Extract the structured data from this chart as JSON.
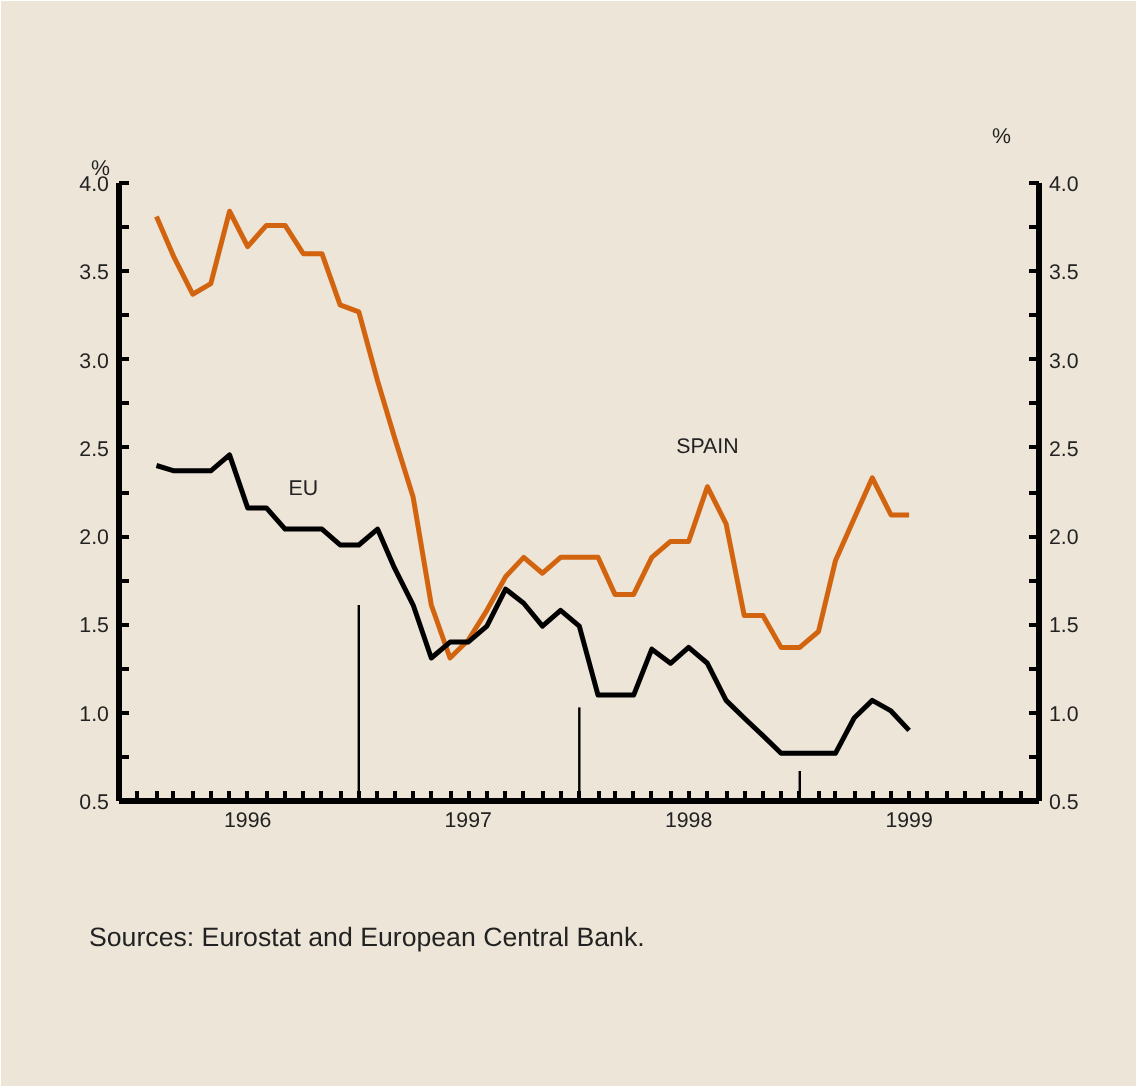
{
  "chart_data": {
    "type": "line",
    "ylabel": "%",
    "y2label": "%",
    "x": [
      "1996-02",
      "1996-03",
      "1996-04",
      "1996-05",
      "1996-06",
      "1996-07",
      "1996-08",
      "1996-09",
      "1996-10",
      "1996-11",
      "1996-12",
      "1997-01",
      "1997-02",
      "1997-03",
      "1997-04",
      "1997-05",
      "1997-06",
      "1997-07",
      "1997-08",
      "1997-09",
      "1997-10",
      "1997-11",
      "1997-12",
      "1998-01",
      "1998-02",
      "1998-03",
      "1998-04",
      "1998-05",
      "1998-06",
      "1998-07",
      "1998-08",
      "1998-09",
      "1998-10",
      "1998-11",
      "1998-12",
      "1999-01",
      "1999-02",
      "1999-03",
      "1999-04",
      "1999-05",
      "1999-06",
      "1999-07"
    ],
    "series": [
      {
        "name": "SPAIN",
        "color": "#d2640f",
        "values": [
          3.81,
          3.58,
          3.37,
          3.43,
          3.84,
          3.64,
          3.76,
          3.76,
          3.6,
          3.6,
          3.31,
          3.27,
          2.88,
          2.56,
          2.22,
          1.61,
          1.31,
          1.41,
          1.58,
          1.77,
          1.88,
          1.79,
          1.88,
          1.88,
          1.88,
          1.67,
          1.67,
          1.88,
          1.97,
          1.97,
          2.28,
          2.07,
          1.55,
          1.55,
          1.37,
          1.37,
          1.46,
          1.86,
          2.1,
          2.33,
          2.12,
          2.12
        ]
      },
      {
        "name": "EU",
        "color": "#000000",
        "values": [
          2.4,
          2.37,
          2.37,
          2.37,
          2.46,
          2.16,
          2.16,
          2.04,
          2.04,
          2.04,
          1.95,
          1.95,
          2.04,
          1.82,
          1.61,
          1.31,
          1.4,
          1.4,
          1.49,
          1.7,
          1.62,
          1.49,
          1.58,
          1.49,
          1.1,
          1.1,
          1.1,
          1.36,
          1.28,
          1.37,
          1.28,
          1.07,
          0.97,
          0.87,
          0.77,
          0.77,
          0.77,
          0.77,
          0.97,
          1.07,
          1.01,
          0.9
        ]
      },
      {
        "type": "bar",
        "color": "#000000",
        "x": [
          "1997-01",
          "1998-01",
          "1999-01"
        ],
        "values": [
          1.61,
          1.03,
          0.67
        ]
      }
    ],
    "xlim": [
      "1995-12",
      "2000-02"
    ],
    "xticks": [
      {
        "value": "1996-01",
        "label": null
      },
      {
        "value": "1996-02",
        "label": null
      },
      {
        "value": "1996-03",
        "label": null
      },
      {
        "value": "1996-04",
        "label": null
      },
      {
        "value": "1996-05",
        "label": null
      },
      {
        "value": "1996-06",
        "label": null
      },
      {
        "value": "1996-07",
        "label": "1996"
      },
      {
        "value": "1996-08",
        "label": null
      },
      {
        "value": "1996-09",
        "label": null
      },
      {
        "value": "1996-10",
        "label": null
      },
      {
        "value": "1996-11",
        "label": null
      },
      {
        "value": "1996-12",
        "label": null
      },
      {
        "value": "1997-01",
        "label": null
      },
      {
        "value": "1997-02",
        "label": null
      },
      {
        "value": "1997-03",
        "label": null
      },
      {
        "value": "1997-04",
        "label": null
      },
      {
        "value": "1997-05",
        "label": null
      },
      {
        "value": "1997-06",
        "label": null
      },
      {
        "value": "1997-07",
        "label": "1997"
      },
      {
        "value": "1997-08",
        "label": null
      },
      {
        "value": "1997-09",
        "label": null
      },
      {
        "value": "1997-10",
        "label": null
      },
      {
        "value": "1997-11",
        "label": null
      },
      {
        "value": "1997-12",
        "label": null
      },
      {
        "value": "1998-01",
        "label": null
      },
      {
        "value": "1998-02",
        "label": null
      },
      {
        "value": "1998-03",
        "label": null
      },
      {
        "value": "1998-04",
        "label": null
      },
      {
        "value": "1998-05",
        "label": null
      },
      {
        "value": "1998-06",
        "label": null
      },
      {
        "value": "1998-07",
        "label": "1998"
      },
      {
        "value": "1998-08",
        "label": null
      },
      {
        "value": "1998-09",
        "label": null
      },
      {
        "value": "1998-10",
        "label": null
      },
      {
        "value": "1998-11",
        "label": null
      },
      {
        "value": "1998-12",
        "label": null
      },
      {
        "value": "1999-01",
        "label": null
      },
      {
        "value": "1999-02",
        "label": null
      },
      {
        "value": "1999-03",
        "label": null
      },
      {
        "value": "1999-04",
        "label": null
      },
      {
        "value": "1999-05",
        "label": null
      },
      {
        "value": "1999-06",
        "label": null
      },
      {
        "value": "1999-07",
        "label": "1999"
      },
      {
        "value": "1999-08",
        "label": null
      },
      {
        "value": "1999-09",
        "label": null
      },
      {
        "value": "1999-10",
        "label": null
      },
      {
        "value": "1999-11",
        "label": null
      },
      {
        "value": "1999-12",
        "label": null
      },
      {
        "value": "2000-01",
        "label": null
      }
    ],
    "ylim": [
      0.5,
      4.0
    ],
    "yticks": [
      {
        "value": 0.5,
        "label": "0.5"
      },
      {
        "value": 0.75,
        "label": null
      },
      {
        "value": 1.0,
        "label": "1.0"
      },
      {
        "value": 1.25,
        "label": null
      },
      {
        "value": 1.5,
        "label": "1.5"
      },
      {
        "value": 1.75,
        "label": null
      },
      {
        "value": 2.0,
        "label": "2.0"
      },
      {
        "value": 2.25,
        "label": null
      },
      {
        "value": 2.5,
        "label": "2.5"
      },
      {
        "value": 2.75,
        "label": null
      },
      {
        "value": 3.0,
        "label": "3.0"
      },
      {
        "value": 3.25,
        "label": null
      },
      {
        "value": 3.5,
        "label": "3.5"
      },
      {
        "value": 3.75,
        "label": null
      },
      {
        "value": 4.0,
        "label": "4.0"
      }
    ],
    "y2lim": [
      0.5,
      4.0
    ],
    "y2ticks": [
      {
        "value": 0.5,
        "label": "0.5"
      },
      {
        "value": 0.75,
        "label": null
      },
      {
        "value": 1.0,
        "label": "1.0"
      },
      {
        "value": 1.25,
        "label": null
      },
      {
        "value": 1.5,
        "label": "1.5"
      },
      {
        "value": 1.75,
        "label": null
      },
      {
        "value": 2.0,
        "label": "2.0"
      },
      {
        "value": 2.25,
        "label": null
      },
      {
        "value": 2.5,
        "label": "2.5"
      },
      {
        "value": 2.75,
        "label": null
      },
      {
        "value": 3.0,
        "label": "3.0"
      },
      {
        "value": 3.25,
        "label": null
      },
      {
        "value": 3.5,
        "label": "3.5"
      },
      {
        "value": 3.75,
        "label": null
      },
      {
        "value": 4.0,
        "label": "4.0"
      }
    ],
    "grid": false,
    "annotations": [
      "Sources:  Eurostat and European Central Bank."
    ]
  }
}
